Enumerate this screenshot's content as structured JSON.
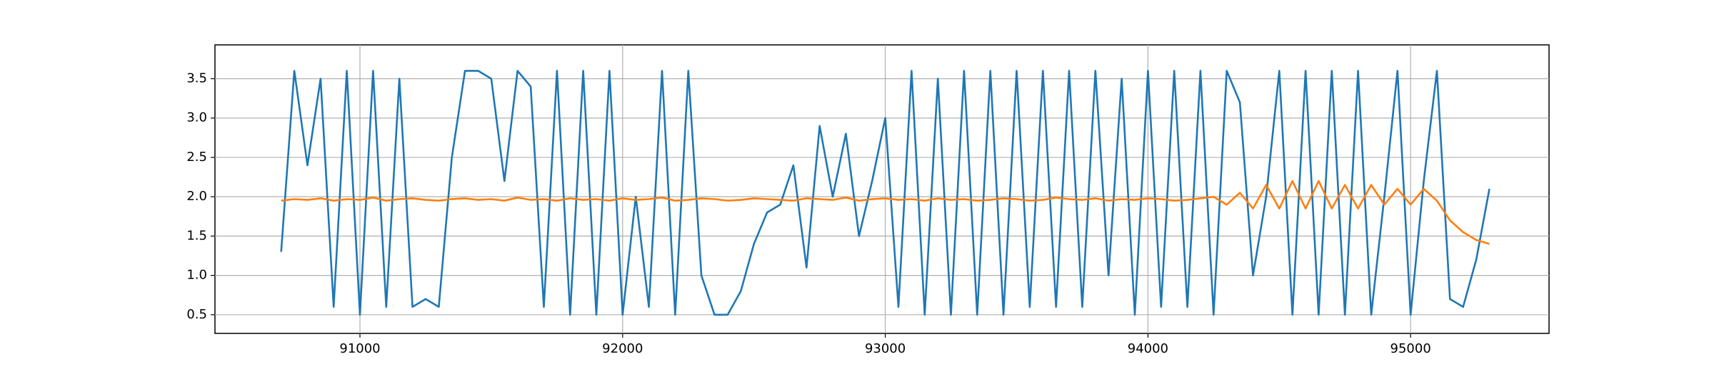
{
  "chart_data": {
    "type": "line",
    "x": [
      90700,
      90750,
      90800,
      90850,
      90900,
      90950,
      91000,
      91050,
      91100,
      91150,
      91200,
      91250,
      91300,
      91350,
      91400,
      91450,
      91500,
      91550,
      91600,
      91650,
      91700,
      91750,
      91800,
      91850,
      91900,
      91950,
      92000,
      92050,
      92100,
      92150,
      92200,
      92250,
      92300,
      92350,
      92400,
      92450,
      92500,
      92550,
      92600,
      92650,
      92700,
      92750,
      92800,
      92850,
      92900,
      92950,
      93000,
      93050,
      93100,
      93150,
      93200,
      93250,
      93300,
      93350,
      93400,
      93450,
      93500,
      93550,
      93600,
      93650,
      93700,
      93750,
      93800,
      93850,
      93900,
      93950,
      94000,
      94050,
      94100,
      94150,
      94200,
      94250,
      94300,
      94350,
      94400,
      94450,
      94500,
      94550,
      94600,
      94650,
      94700,
      94750,
      94800,
      94850,
      94900,
      94950,
      95000,
      95050,
      95100,
      95150,
      95200,
      95250,
      95300
    ],
    "series": [
      {
        "color": "#1f77b4",
        "values": [
          1.3,
          3.6,
          2.4,
          3.5,
          0.6,
          3.6,
          0.5,
          3.6,
          0.6,
          3.5,
          0.6,
          0.7,
          0.6,
          2.5,
          3.6,
          3.6,
          3.5,
          2.2,
          3.6,
          3.4,
          0.6,
          3.6,
          0.5,
          3.6,
          0.5,
          3.6,
          0.5,
          2.0,
          0.6,
          3.6,
          0.5,
          3.6,
          1.0,
          0.5,
          0.5,
          0.8,
          1.4,
          1.8,
          1.9,
          2.4,
          1.1,
          2.9,
          2.0,
          2.8,
          1.5,
          2.2,
          3.0,
          0.6,
          3.6,
          0.5,
          3.5,
          0.5,
          3.6,
          0.5,
          3.6,
          0.5,
          3.6,
          0.6,
          3.6,
          0.6,
          3.6,
          0.6,
          3.6,
          1.0,
          3.5,
          0.5,
          3.6,
          0.6,
          3.6,
          0.6,
          3.6,
          0.5,
          3.6,
          3.2,
          1.0,
          2.0,
          3.6,
          0.5,
          3.6,
          0.5,
          3.6,
          0.5,
          3.6,
          0.5,
          2.0,
          3.6,
          0.5,
          2.2,
          3.6,
          0.7,
          0.6,
          1.2,
          2.1
        ]
      },
      {
        "color": "#ff7f0e",
        "values": [
          1.95,
          1.97,
          1.96,
          1.98,
          1.95,
          1.97,
          1.96,
          1.99,
          1.95,
          1.97,
          1.98,
          1.96,
          1.95,
          1.97,
          1.98,
          1.96,
          1.97,
          1.95,
          1.99,
          1.96,
          1.97,
          1.95,
          1.98,
          1.96,
          1.97,
          1.95,
          1.98,
          1.96,
          1.97,
          1.99,
          1.95,
          1.96,
          1.98,
          1.97,
          1.95,
          1.96,
          1.98,
          1.97,
          1.96,
          1.95,
          1.98,
          1.97,
          1.96,
          1.99,
          1.95,
          1.97,
          1.98,
          1.96,
          1.97,
          1.95,
          1.98,
          1.96,
          1.97,
          1.95,
          1.96,
          1.98,
          1.97,
          1.95,
          1.96,
          1.99,
          1.97,
          1.96,
          1.98,
          1.95,
          1.97,
          1.96,
          1.98,
          1.97,
          1.95,
          1.96,
          1.98,
          2.0,
          1.9,
          2.05,
          1.85,
          2.15,
          1.85,
          2.2,
          1.85,
          2.2,
          1.85,
          2.15,
          1.85,
          2.15,
          1.9,
          2.1,
          1.9,
          2.1,
          1.95,
          1.7,
          1.55,
          1.45,
          1.4
        ]
      }
    ],
    "xlim": [
      90448,
      95527
    ],
    "xticks": [
      91000,
      92000,
      93000,
      94000,
      95000
    ],
    "ylim": [
      0.263,
      3.93
    ],
    "yticks": [
      0.5,
      {
        "value": 1,
        "label": "1.0"
      },
      1.5,
      {
        "value": 2,
        "label": "2.0"
      },
      2.5,
      {
        "value": 3,
        "label": "3.0"
      },
      3.5
    ],
    "grid": true
  }
}
